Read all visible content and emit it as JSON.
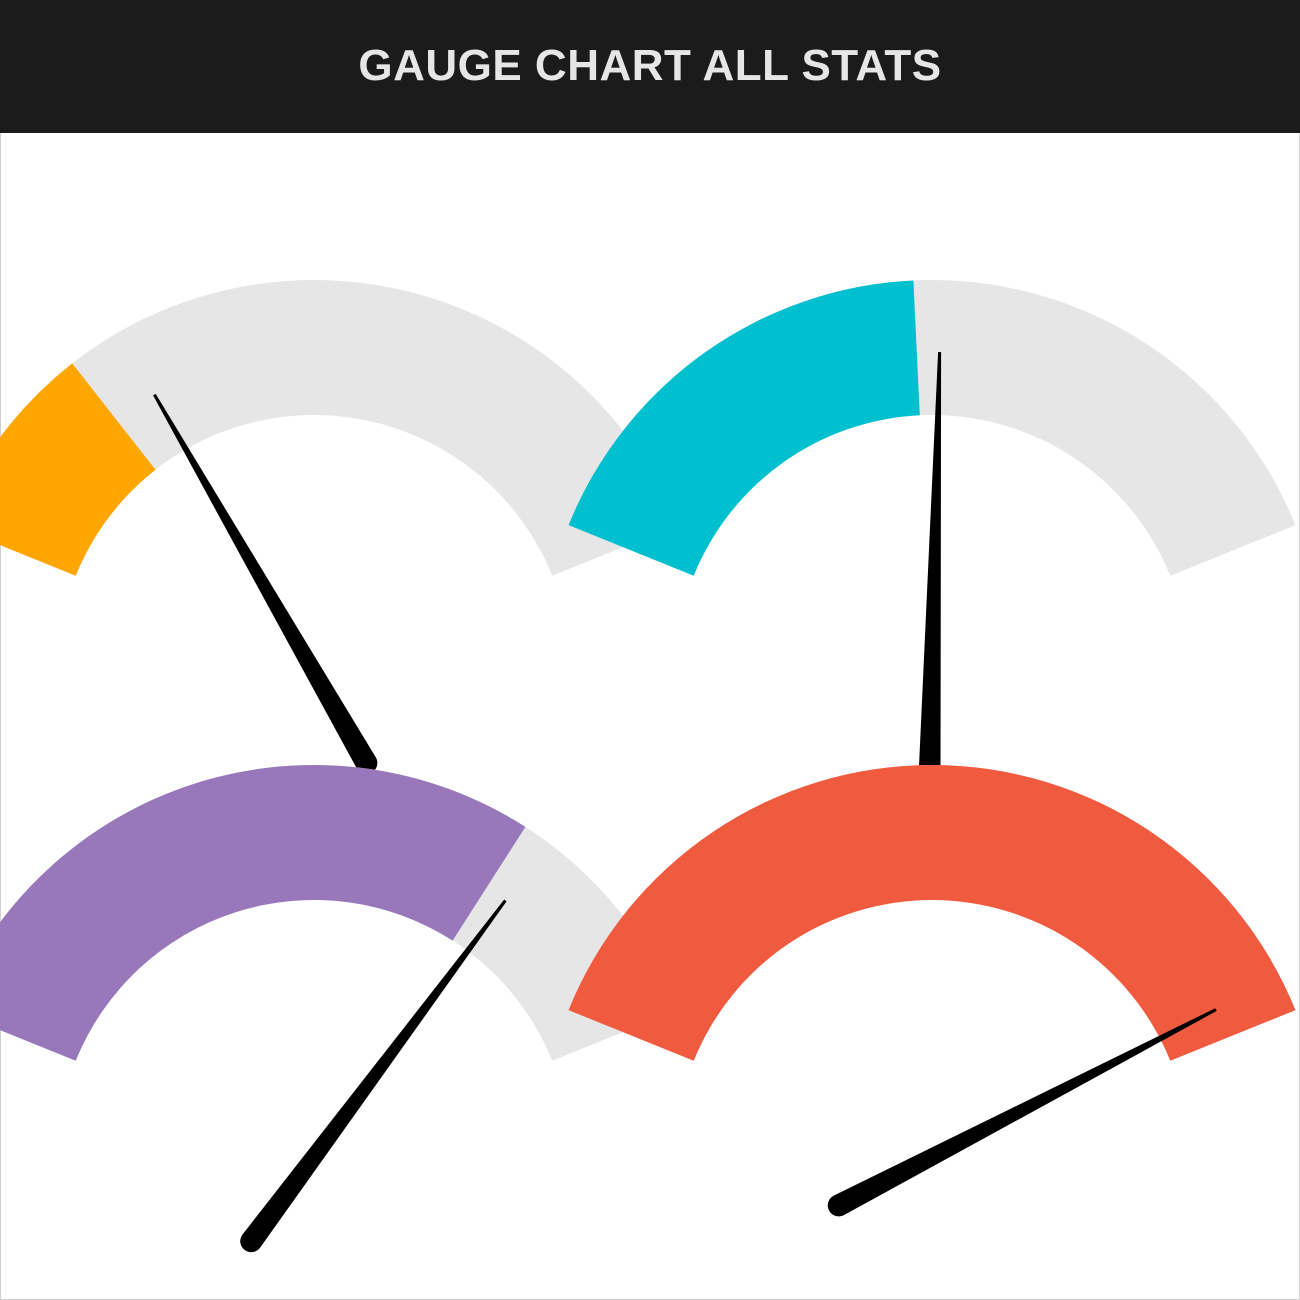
{
  "header": {
    "title": "GAUGE CHART ALL STATS",
    "background": "#1b1b1b",
    "text_color": "#e6e6e6"
  },
  "chart_data": {
    "type": "gauge",
    "min": 0,
    "max": 100,
    "track_color": "#e6e6e6",
    "needle_color": "#000000",
    "gauges": [
      {
        "value": 22,
        "color": "#ffa600"
      },
      {
        "value": 48,
        "color": "#00c0cf"
      },
      {
        "value": 74,
        "color": "#9878bb"
      },
      {
        "value": 100,
        "color": "#f05a3f"
      }
    ],
    "needles": [
      28,
      51,
      77,
      96
    ]
  }
}
